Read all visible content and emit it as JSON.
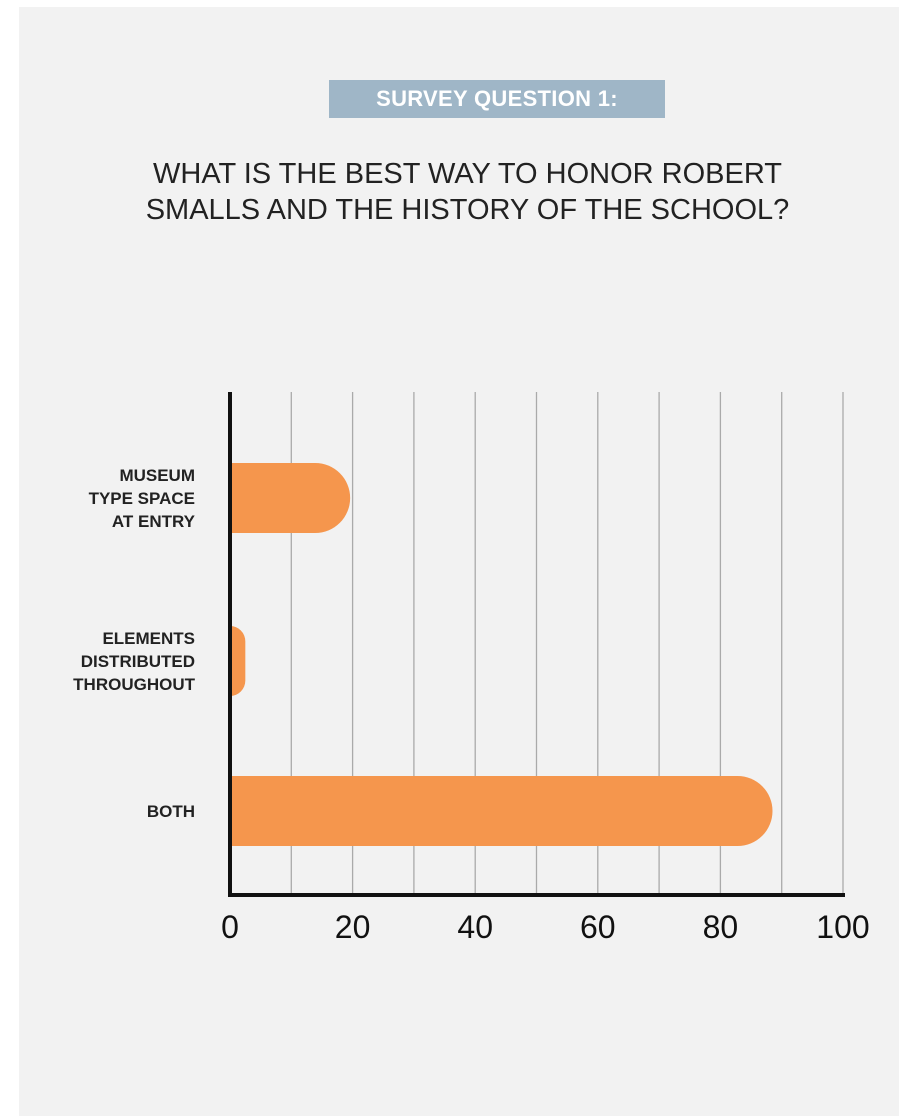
{
  "header": {
    "badge": "SURVEY QUESTION 1:",
    "question_lines": [
      "WHAT IS THE BEST WAY TO HONOR ROBERT",
      "SMALLS AND THE HISTORY OF THE SCHOOL?"
    ]
  },
  "colors": {
    "bar": "#f5964d",
    "badge_bg": "#9fb6c7",
    "axis": "#111111",
    "grid": "#aaaaaa"
  },
  "chart_data": {
    "type": "bar",
    "orientation": "horizontal",
    "categories": [
      [
        "MUSEUM",
        "TYPE SPACE",
        "AT ENTRY"
      ],
      [
        "ELEMENTS",
        "DISTRIBUTED",
        "THROUGHOUT"
      ],
      [
        "BOTH"
      ]
    ],
    "values": [
      19.6,
      2.5,
      88.5
    ],
    "xlim": [
      0,
      100
    ],
    "x_ticks": [
      0,
      20,
      40,
      60,
      80,
      100
    ],
    "grid": "vertical every 10",
    "title": "",
    "xlabel": "",
    "ylabel": ""
  }
}
